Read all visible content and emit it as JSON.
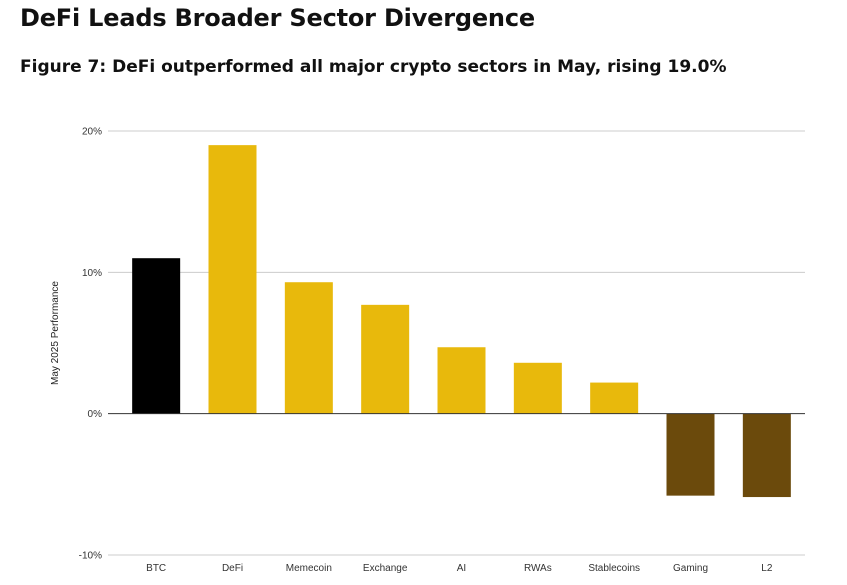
{
  "title": "DeFi Leads Broader Sector Divergence",
  "subtitle": "Figure 7: DeFi outperformed all major crypto sectors in May, rising 19.0%",
  "chart_data": {
    "type": "bar",
    "title": "DeFi Leads Broader Sector Divergence",
    "subtitle": "Figure 7: DeFi outperformed all major crypto sectors in May, rising 19.0%",
    "xlabel": "",
    "ylabel": "May 2025 Performance",
    "ylim": [
      -10,
      20
    ],
    "yticks": [
      20,
      10,
      0,
      -10
    ],
    "ytick_labels": [
      "20%",
      "10%",
      "0%",
      "-10%"
    ],
    "grid": true,
    "legend": "none",
    "categories": [
      "BTC",
      "DeFi",
      "Memecoin",
      "Exchange",
      "AI",
      "RWAs",
      "Stablecoins",
      "Gaming",
      "L2"
    ],
    "values": [
      11.0,
      19.0,
      9.3,
      7.7,
      4.7,
      3.6,
      2.2,
      -5.8,
      -5.9
    ],
    "colors": [
      "#000000",
      "#E8B90C",
      "#E8B90C",
      "#E8B90C",
      "#E8B90C",
      "#E8B90C",
      "#E8B90C",
      "#6B4A0C",
      "#6B4A0C"
    ]
  }
}
